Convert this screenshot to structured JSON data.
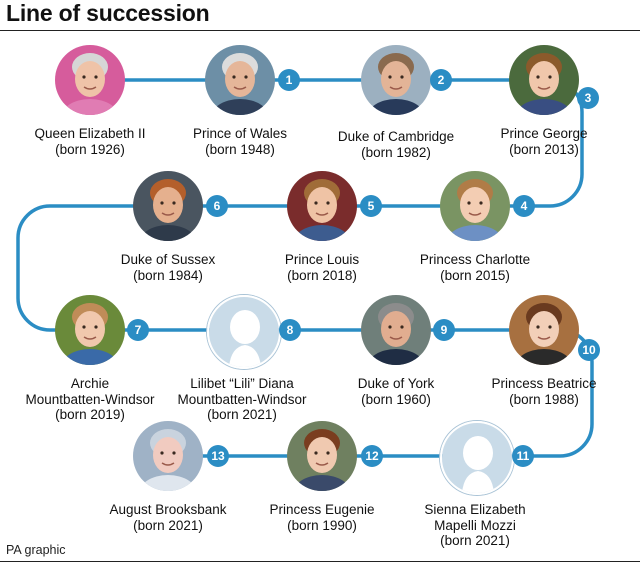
{
  "title": "Line of succession",
  "source": "PA graphic",
  "colors": {
    "accent": "#2b8dc4",
    "track": "#2b8dc4",
    "placeholder": "#c9dbe8",
    "silhouette": "#ffffff"
  },
  "people": [
    {
      "name": "Queen Elizabeth II",
      "born": "(born 1926)",
      "rank": "",
      "photo": "portrait"
    },
    {
      "name": "Prince of Wales",
      "born": "(born 1948)",
      "rank": "1",
      "photo": "portrait"
    },
    {
      "name": "Duke of Cambridge",
      "born": "(born 1982)",
      "rank": "2",
      "photo": "portrait"
    },
    {
      "name": "Prince George",
      "born": "(born 2013)",
      "rank": "3",
      "photo": "portrait"
    },
    {
      "name": "Princess Charlotte",
      "born": "(born 2015)",
      "rank": "4",
      "photo": "portrait"
    },
    {
      "name": "Prince Louis",
      "born": "(born 2018)",
      "rank": "5",
      "photo": "portrait"
    },
    {
      "name": "Duke of Sussex",
      "born": "(born 1984)",
      "rank": "6",
      "photo": "portrait"
    },
    {
      "name": "Archie\nMountbatten-Windsor",
      "born": "(born 2019)",
      "rank": "7",
      "photo": "portrait"
    },
    {
      "name": "Lilibet “Lili” Diana\nMountbatten-Windsor",
      "born": "(born 2021)",
      "rank": "8",
      "photo": "silhouette"
    },
    {
      "name": "Duke of York",
      "born": "(born 1960)",
      "rank": "9",
      "photo": "portrait"
    },
    {
      "name": "Princess Beatrice",
      "born": "(born 1988)",
      "rank": "10",
      "photo": "portrait"
    },
    {
      "name": "Sienna Elizabeth\nMapelli Mozzi",
      "born": "(born 2021)",
      "rank": "11",
      "photo": "silhouette"
    },
    {
      "name": "Princess Eugenie",
      "born": "(born 1990)",
      "rank": "12",
      "photo": "portrait"
    },
    {
      "name": "August Brooksbank",
      "born": "(born 2021)",
      "rank": "13",
      "photo": "portrait"
    }
  ]
}
